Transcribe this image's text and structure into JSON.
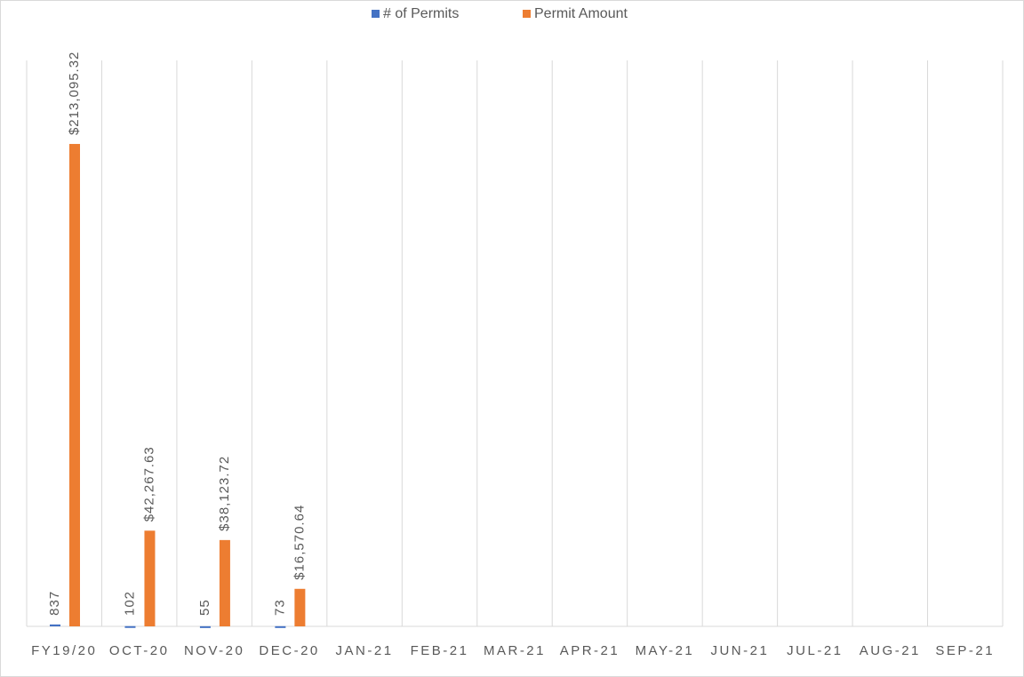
{
  "chart_data": {
    "type": "bar",
    "categories": [
      "FY19/20",
      "OCT-20",
      "NOV-20",
      "DEC-20",
      "JAN-21",
      "FEB-21",
      "MAR-21",
      "APR-21",
      "MAY-21",
      "JUN-21",
      "JUL-21",
      "AUG-21",
      "SEP-21"
    ],
    "series": [
      {
        "name": "# of Permits",
        "color": "#4472c4",
        "values": [
          837,
          102,
          55,
          73,
          null,
          null,
          null,
          null,
          null,
          null,
          null,
          null,
          null
        ]
      },
      {
        "name": "Permit Amount",
        "color": "#ed7d31",
        "values": [
          213095.32,
          42267.63,
          38123.72,
          16570.64,
          null,
          null,
          null,
          null,
          null,
          null,
          null,
          null,
          null
        ],
        "value_labels": [
          "$213,095.32",
          "$42,267.63",
          "$38,123.72",
          "$16,570.64",
          null,
          null,
          null,
          null,
          null,
          null,
          null,
          null,
          null
        ]
      }
    ],
    "ylim": [
      0,
      250000
    ],
    "legend": "top"
  }
}
